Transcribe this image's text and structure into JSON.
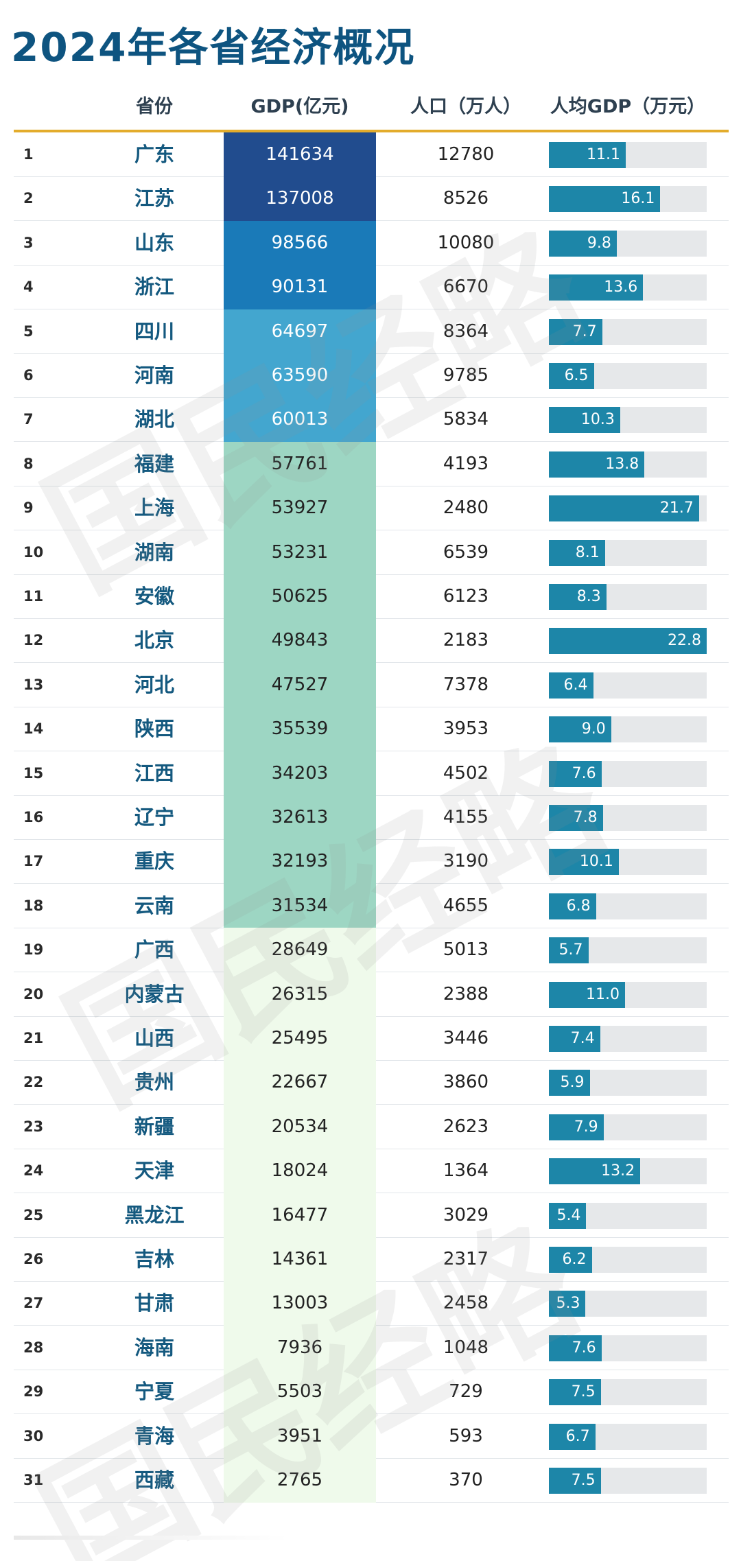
{
  "title": "2024年各省经济概况",
  "watermark_text": "国民经略",
  "chart_data": {
    "type": "table",
    "title": "2024年各省经济概况",
    "columns": [
      "省份",
      "GDP(亿元)",
      "人口（万人）",
      "人均GDP（万元）"
    ],
    "rows": [
      {
        "rank": "1",
        "province": "广东",
        "gdp": 141634,
        "population": 12780,
        "per_capita": 11.1
      },
      {
        "rank": "2",
        "province": "江苏",
        "gdp": 137008,
        "population": 8526,
        "per_capita": 16.1
      },
      {
        "rank": "3",
        "province": "山东",
        "gdp": 98566,
        "population": 10080,
        "per_capita": 9.8
      },
      {
        "rank": "4",
        "province": "浙江",
        "gdp": 90131,
        "population": 6670,
        "per_capita": 13.6
      },
      {
        "rank": "5",
        "province": "四川",
        "gdp": 64697,
        "population": 8364,
        "per_capita": 7.7
      },
      {
        "rank": "6",
        "province": "河南",
        "gdp": 63590,
        "population": 9785,
        "per_capita": 6.5
      },
      {
        "rank": "7",
        "province": "湖北",
        "gdp": 60013,
        "population": 5834,
        "per_capita": 10.3
      },
      {
        "rank": "8",
        "province": "福建",
        "gdp": 57761,
        "population": 4193,
        "per_capita": 13.8
      },
      {
        "rank": "9",
        "province": "上海",
        "gdp": 53927,
        "population": 2480,
        "per_capita": 21.7
      },
      {
        "rank": "10",
        "province": "湖南",
        "gdp": 53231,
        "population": 6539,
        "per_capita": 8.1
      },
      {
        "rank": "11",
        "province": "安徽",
        "gdp": 50625,
        "population": 6123,
        "per_capita": 8.3
      },
      {
        "rank": "12",
        "province": "北京",
        "gdp": 49843,
        "population": 2183,
        "per_capita": 22.8
      },
      {
        "rank": "13",
        "province": "河北",
        "gdp": 47527,
        "population": 7378,
        "per_capita": 6.4
      },
      {
        "rank": "14",
        "province": "陕西",
        "gdp": 35539,
        "population": 3953,
        "per_capita": 9.0
      },
      {
        "rank": "15",
        "province": "江西",
        "gdp": 34203,
        "population": 4502,
        "per_capita": 7.6
      },
      {
        "rank": "16",
        "province": "辽宁",
        "gdp": 32613,
        "population": 4155,
        "per_capita": 7.8
      },
      {
        "rank": "17",
        "province": "重庆",
        "gdp": 32193,
        "population": 3190,
        "per_capita": 10.1
      },
      {
        "rank": "18",
        "province": "云南",
        "gdp": 31534,
        "population": 4655,
        "per_capita": 6.8
      },
      {
        "rank": "19",
        "province": "广西",
        "gdp": 28649,
        "population": 5013,
        "per_capita": 5.7
      },
      {
        "rank": "20",
        "province": "内蒙古",
        "gdp": 26315,
        "population": 2388,
        "per_capita": 11.0
      },
      {
        "rank": "21",
        "province": "山西",
        "gdp": 25495,
        "population": 3446,
        "per_capita": 7.4
      },
      {
        "rank": "22",
        "province": "贵州",
        "gdp": 22667,
        "population": 3860,
        "per_capita": 5.9
      },
      {
        "rank": "23",
        "province": "新疆",
        "gdp": 20534,
        "population": 2623,
        "per_capita": 7.9
      },
      {
        "rank": "24",
        "province": "天津",
        "gdp": 18024,
        "population": 1364,
        "per_capita": 13.2
      },
      {
        "rank": "25",
        "province": "黑龙江",
        "gdp": 16477,
        "population": 3029,
        "per_capita": 5.4
      },
      {
        "rank": "26",
        "province": "吉林",
        "gdp": 14361,
        "population": 2317,
        "per_capita": 6.2
      },
      {
        "rank": "27",
        "province": "甘肃",
        "gdp": 13003,
        "population": 2458,
        "per_capita": 5.3
      },
      {
        "rank": "28",
        "province": "海南",
        "gdp": 7936,
        "population": 1048,
        "per_capita": 7.6
      },
      {
        "rank": "29",
        "province": "宁夏",
        "gdp": 5503,
        "population": 729,
        "per_capita": 7.5
      },
      {
        "rank": "30",
        "province": "青海",
        "gdp": 3951,
        "population": 593,
        "per_capita": 6.7
      },
      {
        "rank": "31",
        "province": "西藏",
        "gdp": 2765,
        "population": 370,
        "per_capita": 7.5
      }
    ],
    "per_capita_range": [
      0,
      22.8
    ],
    "gdp_color_tiers": [
      {
        "min": 100000,
        "bg": "#214c8e",
        "text": "#ffffff"
      },
      {
        "min": 70000,
        "bg": "#1a7ab8",
        "text": "#ffffff"
      },
      {
        "min": 58000,
        "bg": "#43a6cf",
        "text": "#ffffff"
      },
      {
        "min": 30000,
        "bg": "#9dd6c3",
        "text": "#222222"
      },
      {
        "min": 0,
        "bg": "#effaeb",
        "text": "#222222"
      }
    ],
    "bar_color": "#1d86a8",
    "bar_track_color": "#e6e8ea",
    "header_rule_color": "#e3ac2c"
  }
}
